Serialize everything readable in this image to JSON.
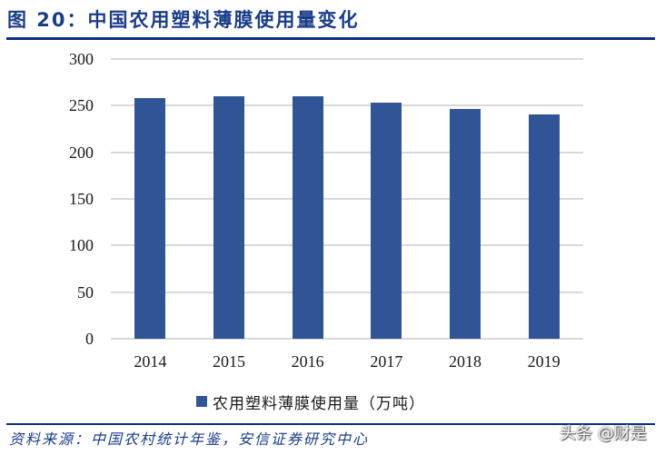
{
  "header": {
    "title": "图 20：中国农用塑料薄膜使用量变化"
  },
  "chart_data": {
    "type": "bar",
    "title": "中国农用塑料薄膜使用量变化",
    "categories": [
      "2014",
      "2015",
      "2016",
      "2017",
      "2018",
      "2019"
    ],
    "series": [
      {
        "name": "农用塑料薄膜使用量（万吨）",
        "values": [
          258,
          260,
          260,
          253,
          246,
          241
        ],
        "color": "#2f5597"
      }
    ],
    "xlabel": "",
    "ylabel": "",
    "ylim": [
      0,
      300
    ],
    "yticks": [
      "0",
      "50",
      "100",
      "150",
      "200",
      "250",
      "300"
    ],
    "grid": true,
    "legend_position": "bottom"
  },
  "legend": {
    "label": "农用塑料薄膜使用量（万吨）"
  },
  "footer": {
    "source": "资料来源：中国农村统计年鉴，安信证券研究中心",
    "watermark": "头条 @财是"
  },
  "colors": {
    "title": "#1a3d8a",
    "rule": "#0d2d82",
    "bar": "#2f5597",
    "grid": "#d9d9d9"
  }
}
